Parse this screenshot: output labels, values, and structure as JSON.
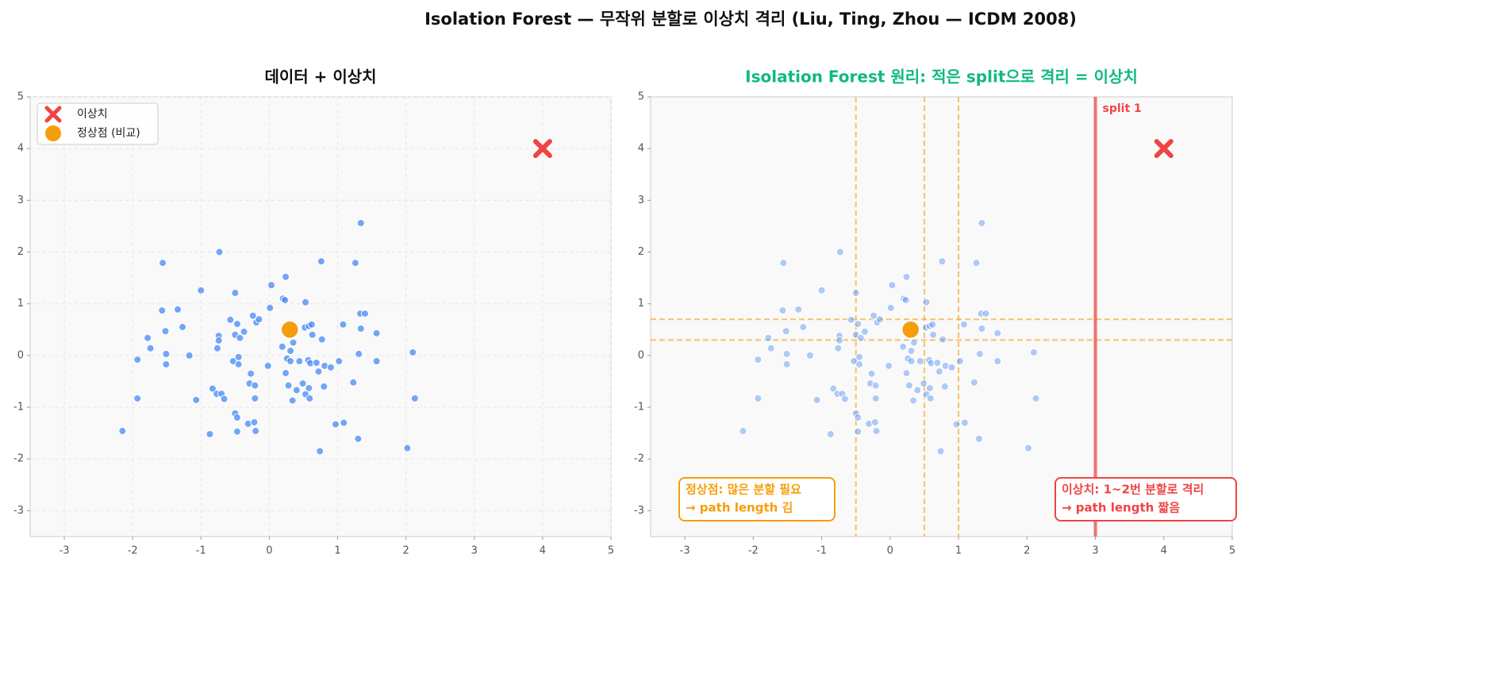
{
  "title": "Isolation Forest — 무작위 분할로 이상치 격리 (Liu, Ting, Zhou — ICDM 2008)",
  "chart_data": [
    {
      "type": "scatter",
      "title": "데이터 + 이상치",
      "title_color": "#111111",
      "xlim": [
        -3.5,
        5
      ],
      "ylim": [
        -3.5,
        5
      ],
      "xticks": [
        -3,
        -2,
        -1,
        0,
        1,
        2,
        3,
        4,
        5
      ],
      "yticks": [
        -3,
        -2,
        -1,
        0,
        1,
        2,
        3,
        4,
        5
      ],
      "grid": true,
      "legend": "upper left",
      "series": [
        {
          "color": "#3b82f6",
          "alpha": 0.7,
          "x": [
            -2.15,
            -1.93,
            -1.93,
            -1.78,
            -1.74,
            -1.57,
            -1.56,
            -1.52,
            -1.51,
            -1.51,
            -1.34,
            -1.27,
            -1.17,
            -1.07,
            -1.0,
            -0.87,
            -0.83,
            -0.77,
            -0.73,
            -0.74,
            -0.74,
            -0.76,
            -0.7,
            -0.66,
            -0.57,
            -0.53,
            -0.5,
            -0.5,
            -0.47,
            -0.5,
            -0.47,
            -0.47,
            -0.45,
            -0.45,
            -0.43,
            -0.37,
            -0.31,
            -0.29,
            -0.27,
            -0.24,
            -0.22,
            -0.21,
            -0.21,
            -0.2,
            -0.19,
            -0.15,
            -0.02,
            0.01,
            0.03,
            0.19,
            0.2,
            0.23,
            0.24,
            0.24,
            0.26,
            0.28,
            0.31,
            0.31,
            0.34,
            0.35,
            0.4,
            0.44,
            0.49,
            0.52,
            0.53,
            0.53,
            0.57,
            0.58,
            0.58,
            0.59,
            0.6,
            0.62,
            0.63,
            0.69,
            0.72,
            0.74,
            0.76,
            0.77,
            0.8,
            0.81,
            0.9,
            0.97,
            1.02,
            1.08,
            1.09,
            1.23,
            1.26,
            1.3,
            1.31,
            1.33,
            1.34,
            1.34,
            1.4,
            1.57,
            1.57,
            2.02,
            2.1,
            2.13
          ],
          "y": [
            -1.46,
            -0.83,
            -0.08,
            0.34,
            0.14,
            0.87,
            1.79,
            0.47,
            0.03,
            -0.17,
            0.89,
            0.55,
            0.0,
            -0.86,
            1.26,
            -1.52,
            -0.64,
            -0.74,
            2.0,
            0.38,
            0.29,
            0.14,
            -0.74,
            -0.84,
            0.69,
            -0.11,
            0.4,
            1.21,
            0.61,
            -1.12,
            -1.2,
            -1.47,
            -0.03,
            -0.17,
            0.34,
            0.46,
            -1.32,
            -0.54,
            -0.35,
            0.77,
            -1.29,
            -0.58,
            -0.83,
            -1.46,
            0.64,
            0.7,
            -0.2,
            0.92,
            1.36,
            0.17,
            1.1,
            1.07,
            1.52,
            -0.34,
            -0.06,
            -0.58,
            0.09,
            -0.11,
            -0.87,
            0.25,
            -0.67,
            -0.11,
            -0.54,
            0.54,
            1.03,
            -0.75,
            -0.09,
            0.57,
            -0.63,
            -0.83,
            -0.15,
            0.6,
            0.4,
            -0.14,
            -0.31,
            -1.85,
            1.82,
            0.31,
            -0.6,
            -0.2,
            -0.23,
            -1.33,
            -0.11,
            0.6,
            -1.3,
            -0.52,
            1.79,
            -1.61,
            0.03,
            0.81,
            2.56,
            0.52,
            0.81,
            0.43,
            -0.11,
            -1.79,
            0.06,
            -0.83
          ]
        },
        {
          "name": "이상치",
          "color": "#ef4444",
          "marker": "x",
          "x": [
            4
          ],
          "y": [
            4
          ]
        },
        {
          "name": "정상점 (비교)",
          "color": "#f59e0b",
          "marker": "o",
          "x": [
            0.3
          ],
          "y": [
            0.5
          ]
        }
      ]
    },
    {
      "type": "scatter",
      "title": "Isolation Forest 원리: 적은 split으로 격리 = 이상치",
      "title_color": "#10b981",
      "xlim": [
        -3.5,
        5
      ],
      "ylim": [
        -3.5,
        5
      ],
      "xticks": [
        -3,
        -2,
        -1,
        0,
        1,
        2,
        3,
        4,
        5
      ],
      "yticks": [
        -3,
        -2,
        -1,
        0,
        1,
        2,
        3,
        4,
        5
      ],
      "grid": false,
      "series": [
        {
          "color": "#3b82f6",
          "alpha": 0.4,
          "x": [
            -2.15,
            -1.93,
            -1.93,
            -1.78,
            -1.74,
            -1.57,
            -1.56,
            -1.52,
            -1.51,
            -1.51,
            -1.34,
            -1.27,
            -1.17,
            -1.07,
            -1.0,
            -0.87,
            -0.83,
            -0.77,
            -0.73,
            -0.74,
            -0.74,
            -0.76,
            -0.7,
            -0.66,
            -0.57,
            -0.53,
            -0.5,
            -0.5,
            -0.47,
            -0.5,
            -0.47,
            -0.47,
            -0.45,
            -0.45,
            -0.43,
            -0.37,
            -0.31,
            -0.29,
            -0.27,
            -0.24,
            -0.22,
            -0.21,
            -0.21,
            -0.2,
            -0.19,
            -0.15,
            -0.02,
            0.01,
            0.03,
            0.19,
            0.2,
            0.23,
            0.24,
            0.24,
            0.26,
            0.28,
            0.31,
            0.31,
            0.34,
            0.35,
            0.4,
            0.44,
            0.49,
            0.52,
            0.53,
            0.53,
            0.57,
            0.58,
            0.58,
            0.59,
            0.6,
            0.62,
            0.63,
            0.69,
            0.72,
            0.74,
            0.76,
            0.77,
            0.8,
            0.81,
            0.9,
            0.97,
            1.02,
            1.08,
            1.09,
            1.23,
            1.26,
            1.3,
            1.31,
            1.33,
            1.34,
            1.34,
            1.4,
            1.57,
            1.57,
            2.02,
            2.1,
            2.13
          ],
          "y": [
            -1.46,
            -0.83,
            -0.08,
            0.34,
            0.14,
            0.87,
            1.79,
            0.47,
            0.03,
            -0.17,
            0.89,
            0.55,
            0.0,
            -0.86,
            1.26,
            -1.52,
            -0.64,
            -0.74,
            2.0,
            0.38,
            0.29,
            0.14,
            -0.74,
            -0.84,
            0.69,
            -0.11,
            0.4,
            1.21,
            0.61,
            -1.12,
            -1.2,
            -1.47,
            -0.03,
            -0.17,
            0.34,
            0.46,
            -1.32,
            -0.54,
            -0.35,
            0.77,
            -1.29,
            -0.58,
            -0.83,
            -1.46,
            0.64,
            0.7,
            -0.2,
            0.92,
            1.36,
            0.17,
            1.1,
            1.07,
            1.52,
            -0.34,
            -0.06,
            -0.58,
            0.09,
            -0.11,
            -0.87,
            0.25,
            -0.67,
            -0.11,
            -0.54,
            0.54,
            1.03,
            -0.75,
            -0.09,
            0.57,
            -0.63,
            -0.83,
            -0.15,
            0.6,
            0.4,
            -0.14,
            -0.31,
            -1.85,
            1.82,
            0.31,
            -0.6,
            -0.2,
            -0.23,
            -1.33,
            -0.11,
            0.6,
            -1.3,
            -0.52,
            1.79,
            -1.61,
            0.03,
            0.81,
            2.56,
            0.52,
            0.81,
            0.43,
            -0.11,
            -1.79,
            0.06,
            -0.83
          ]
        },
        {
          "color": "#ef4444",
          "marker": "x",
          "x": [
            4
          ],
          "y": [
            4
          ]
        },
        {
          "color": "#f59e0b",
          "marker": "o",
          "x": [
            0.3
          ],
          "y": [
            0.5
          ]
        }
      ],
      "outlier_split": {
        "x": 3,
        "label": "split 1",
        "color": "#ef4444"
      },
      "normal_vsplits": [
        -0.5,
        0.5,
        1.0
      ],
      "normal_hsplits": [
        0.7,
        0.3
      ],
      "split_color": "#f59e0b",
      "annotations": [
        {
          "lines": [
            "정상점: 많은 분할 필요",
            "→ path length 김"
          ],
          "color": "#f59e0b"
        },
        {
          "lines": [
            "이상치: 1~2번 분할로 격리",
            "→ path length 짧음"
          ],
          "color": "#ef4444"
        }
      ]
    }
  ]
}
